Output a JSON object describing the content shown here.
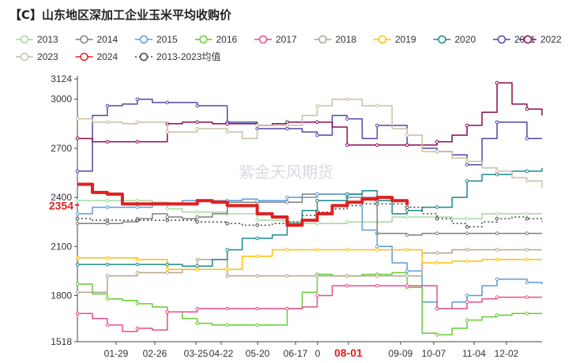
{
  "chart_data": {
    "type": "line",
    "title": "【C】山东地区深加工企业玉米平均收购价",
    "watermark": "紫金天风期货",
    "y_axis": {
      "min": 1518,
      "max": 3124,
      "ticks": [
        1518,
        1800,
        2100,
        2400,
        2700,
        3000,
        3124
      ]
    },
    "x_axis": {
      "ticks": [
        "01-29",
        "02-26",
        "03-25",
        "04-22",
        "05-20",
        "06-17",
        "0",
        "08-01",
        "09-09",
        "10-07",
        "11-04",
        "12-02"
      ],
      "highlight_tick": "08-01"
    },
    "current_value_label": "2354",
    "legend_position": "top",
    "grid": false,
    "series": [
      {
        "name": "2013",
        "color": "#a8d8a0",
        "dash": "",
        "values": [
          2380,
          2380,
          2380,
          2380,
          2380,
          2370,
          2330,
          2310,
          2310,
          2310,
          2300,
          2300,
          2260,
          2260,
          2250,
          2240,
          2240,
          2240,
          2250,
          2250,
          2250,
          2280,
          2280,
          2280,
          2280,
          2270,
          2270,
          2300,
          2300,
          2300,
          2300,
          2300
        ]
      },
      {
        "name": "2014",
        "color": "#7f7f7f",
        "dash": "",
        "values": [
          2240,
          2240,
          2240,
          2250,
          2270,
          2300,
          2280,
          2270,
          2280,
          2300,
          2370,
          2370,
          2370,
          2370,
          2370,
          2420,
          2420,
          2420,
          2420,
          2400,
          2180,
          2180,
          2170,
          2180,
          2180,
          2180,
          2180,
          2180,
          2180,
          2180,
          2180,
          2180
        ]
      },
      {
        "name": "2015",
        "color": "#5b9bd5",
        "dash": "",
        "values": [
          2300,
          2340,
          2340,
          2340,
          2340,
          2360,
          2360,
          2380,
          2380,
          2380,
          2380,
          2390,
          2380,
          2380,
          2400,
          2400,
          2420,
          2420,
          2400,
          2200,
          2100,
          2000,
          1950,
          1760,
          1720,
          1760,
          1800,
          1860,
          1900,
          1900,
          1880,
          1870
        ]
      },
      {
        "name": "2016",
        "color": "#66cc33",
        "dash": "",
        "values": [
          1870,
          1810,
          1780,
          1770,
          1750,
          1730,
          1700,
          1660,
          1630,
          1620,
          1620,
          1620,
          1620,
          1620,
          1720,
          1820,
          1930,
          1920,
          1920,
          1930,
          1930,
          1940,
          1850,
          1570,
          1560,
          1600,
          1650,
          1670,
          1680,
          1690,
          1690,
          1690
        ]
      },
      {
        "name": "2017",
        "color": "#e84c8b",
        "dash": "",
        "values": [
          1690,
          1660,
          1620,
          1580,
          1600,
          1590,
          1700,
          1700,
          1720,
          1720,
          1720,
          1720,
          1720,
          1720,
          1720,
          1730,
          1800,
          1860,
          1860,
          1860,
          1860,
          1860,
          1860,
          1860,
          1720,
          1720,
          1760,
          1780,
          1790,
          1790,
          1790,
          1790
        ]
      },
      {
        "name": "2018",
        "color": "#b5a48a",
        "dash": "",
        "values": [
          1820,
          1820,
          1920,
          1920,
          1940,
          1940,
          1940,
          1960,
          2020,
          2020,
          1920,
          1920,
          1920,
          1920,
          1920,
          1920,
          1920,
          1920,
          1920,
          1920,
          1920,
          1920,
          1920,
          2060,
          2060,
          2080,
          2080,
          2080,
          2080,
          2080,
          2080,
          2080
        ]
      },
      {
        "name": "2019",
        "color": "#ffc000",
        "dash": "",
        "values": [
          2030,
          2030,
          2030,
          2030,
          2020,
          2020,
          1960,
          1960,
          1960,
          1960,
          1960,
          2040,
          2040,
          2080,
          2080,
          2080,
          2080,
          2080,
          2080,
          2080,
          2080,
          2080,
          2080,
          2000,
          2000,
          2010,
          2010,
          2020,
          2020,
          2020,
          2020,
          2020
        ]
      },
      {
        "name": "2020",
        "color": "#1a8a8a",
        "dash": "",
        "values": [
          1990,
          1990,
          1990,
          1990,
          1990,
          1990,
          1990,
          1980,
          1980,
          2020,
          2080,
          2150,
          2150,
          2170,
          2240,
          2320,
          2380,
          2380,
          2420,
          2440,
          2380,
          2300,
          2320,
          2340,
          2340,
          2400,
          2500,
          2540,
          2540,
          2560,
          2560,
          2580
        ]
      },
      {
        "name": "2021",
        "color": "#5046a8",
        "dash": "",
        "values": [
          2560,
          2900,
          2960,
          2970,
          3000,
          2980,
          2980,
          2980,
          2960,
          2960,
          2860,
          2860,
          2820,
          2820,
          2820,
          2800,
          2780,
          2900,
          2880,
          2760,
          2840,
          2840,
          2720,
          2700,
          2680,
          2660,
          2600,
          2760,
          2860,
          2860,
          2760,
          2760
        ]
      },
      {
        "name": "2022",
        "color": "#8b0b55",
        "dash": "",
        "values": [
          2760,
          2740,
          2740,
          2740,
          2740,
          2740,
          2850,
          2860,
          2860,
          2850,
          2850,
          2850,
          2840,
          2850,
          2860,
          2860,
          2860,
          2830,
          2720,
          2720,
          2720,
          2720,
          2720,
          2720,
          2740,
          2780,
          2840,
          2920,
          3100,
          2970,
          2940,
          2900
        ]
      },
      {
        "name": "2023",
        "color": "#c9bfa5",
        "dash": "",
        "values": [
          2880,
          2860,
          2860,
          2850,
          2860,
          2860,
          2800,
          2800,
          2820,
          2820,
          2800,
          2760,
          2840,
          2840,
          2840,
          2900,
          2960,
          3000,
          3000,
          2960,
          2960,
          2820,
          2780,
          2680,
          2680,
          2640,
          2620,
          2580,
          2560,
          2520,
          2500,
          2460
        ]
      },
      {
        "name": "2024",
        "color": "#e02020",
        "dash": "",
        "values": [
          2480,
          2430,
          2420,
          2360,
          2360,
          2360,
          2360,
          2360,
          2380,
          2370,
          2350,
          2350,
          2300,
          2280,
          2230,
          2260,
          2300,
          2350,
          2370,
          2390,
          2400,
          2380,
          2354
        ]
      },
      {
        "name": "2013-2023均值",
        "color": "#444444",
        "dash": "2,3",
        "values": [
          2270,
          2260,
          2260,
          2260,
          2260,
          2260,
          2260,
          2260,
          2250,
          2250,
          2240,
          2230,
          2230,
          2240,
          2250,
          2290,
          2310,
          2330,
          2350,
          2360,
          2360,
          2360,
          2340,
          2300,
          2270,
          2240,
          2220,
          2250,
          2270,
          2280,
          2270,
          2250
        ]
      }
    ]
  }
}
